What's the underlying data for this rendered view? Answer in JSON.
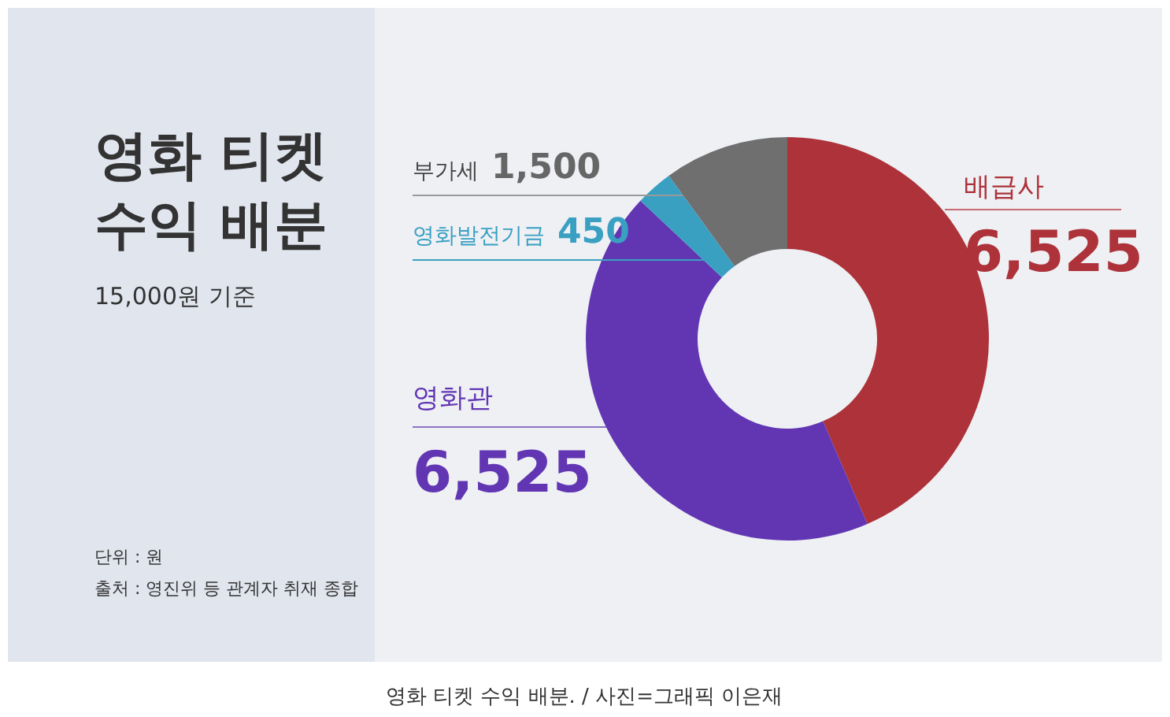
{
  "chart_data": {
    "type": "donut",
    "title": "영화 티켓 수익 배분",
    "subtitle": "15,000원 기준",
    "categories": [
      "배급사",
      "영화관",
      "영화발전기금",
      "부가세"
    ],
    "values": [
      6525,
      6525,
      450,
      1500
    ],
    "value_labels": [
      "6,525",
      "6,525",
      "450",
      "1,500"
    ],
    "colors": [
      "#ad3239",
      "#6236b3",
      "#3aa0c2",
      "#6f6f6f"
    ],
    "annotations": [
      "단위 : 원",
      "출처 : 영진위 등 관계자 취재 종합",
      "영화 티켓 수익 배분. / 사진=그래픽 이은재"
    ]
  }
}
